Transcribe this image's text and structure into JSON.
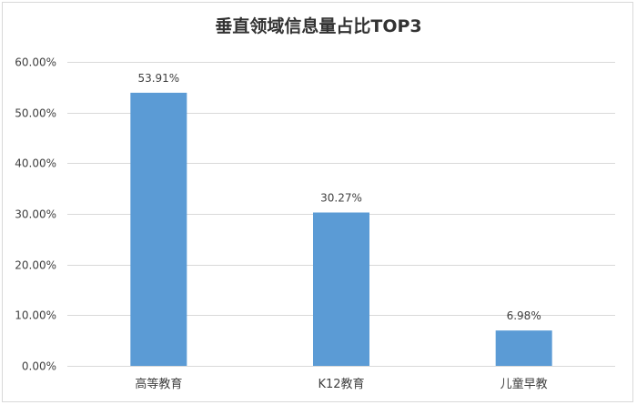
{
  "chart_data": {
    "type": "bar",
    "title": "垂直领域信息量占比TOP3",
    "categories": [
      "高等教育",
      "K12教育",
      "儿童早教"
    ],
    "values": [
      53.91,
      30.27,
      6.98
    ],
    "data_labels": [
      "53.91%",
      "30.27%",
      "6.98%"
    ],
    "ylim": [
      0,
      60
    ],
    "yticks": [
      0,
      10,
      20,
      30,
      40,
      50,
      60
    ],
    "ytick_labels": [
      "0.00%",
      "10.00%",
      "20.00%",
      "30.00%",
      "40.00%",
      "50.00%",
      "60.00%"
    ],
    "xlabel": "",
    "ylabel": "",
    "grid": true,
    "legend": "none",
    "bar_color": "#5b9bd5"
  }
}
